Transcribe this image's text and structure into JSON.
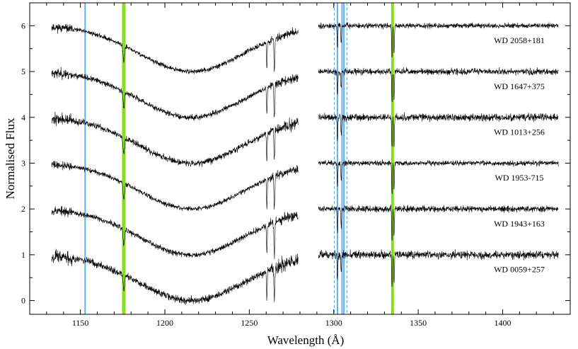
{
  "chart_data": {
    "type": "line",
    "title": "",
    "xlabel": "Wavelength (Å)",
    "ylabel": "Normalised Flux",
    "xlim": [
      1120,
      1440
    ],
    "ylim": [
      -0.3,
      6.5
    ],
    "x_ticks": [
      1150,
      1200,
      1250,
      1300,
      1350,
      1400
    ],
    "y_ticks": [
      0,
      1,
      2,
      3,
      4,
      5,
      6
    ],
    "grid": false,
    "segments": [
      [
        1133,
        1279
      ],
      [
        1291,
        1433
      ]
    ],
    "lyman_alpha_center": 1215.7,
    "series": [
      {
        "name": "WD 2058+181",
        "offset": 5,
        "noise": 0.05,
        "seed": 11
      },
      {
        "name": "WD 1647+375",
        "offset": 4,
        "noise": 0.06,
        "seed": 23
      },
      {
        "name": "WD 1013+256",
        "offset": 3,
        "noise": 0.07,
        "seed": 37
      },
      {
        "name": "WD 1953-715",
        "offset": 2,
        "noise": 0.05,
        "seed": 41
      },
      {
        "name": "WD 1943+163",
        "offset": 1,
        "noise": 0.06,
        "seed": 53
      },
      {
        "name": "WD 0059+257",
        "offset": 0,
        "noise": 0.08,
        "seed": 67
      }
    ],
    "absorption_lines": [
      {
        "wavelength": 1175.7,
        "depth": 0.35,
        "width": 0.6
      },
      {
        "wavelength": 1260.4,
        "depth": 0.6,
        "width": 0.3
      },
      {
        "wavelength": 1264.7,
        "depth": 0.5,
        "width": 0.3
      },
      {
        "wavelength": 1265.0,
        "depth": 0.4,
        "width": 0.3
      },
      {
        "wavelength": 1302.2,
        "depth": 0.5,
        "width": 0.3
      },
      {
        "wavelength": 1304.4,
        "depth": 0.4,
        "width": 0.3
      },
      {
        "wavelength": 1334.5,
        "depth": 0.7,
        "width": 0.3
      },
      {
        "wavelength": 1335.7,
        "depth": 0.6,
        "width": 0.3
      }
    ],
    "marker_lines": [
      {
        "wavelength": 1152.8,
        "color": "#55aaee",
        "style": "solid"
      },
      {
        "wavelength": 1175.7,
        "color": "#88dd22",
        "style": "band"
      },
      {
        "wavelength": 1300.3,
        "color": "#55aaee",
        "style": "dashed"
      },
      {
        "wavelength": 1302.2,
        "color": "#55aaee",
        "style": "solid"
      },
      {
        "wavelength": 1304.9,
        "color": "#55aaee",
        "style": "solid"
      },
      {
        "wavelength": 1306.0,
        "color": "#55aaee",
        "style": "solid"
      },
      {
        "wavelength": 1307.8,
        "color": "#55aaee",
        "style": "dashed"
      },
      {
        "wavelength": 1334.8,
        "color": "#88dd22",
        "style": "band-narrow"
      }
    ],
    "colors": {
      "spectrum": "#000000",
      "blue_line": "#55aaee",
      "green_band": "#88dd22"
    }
  }
}
